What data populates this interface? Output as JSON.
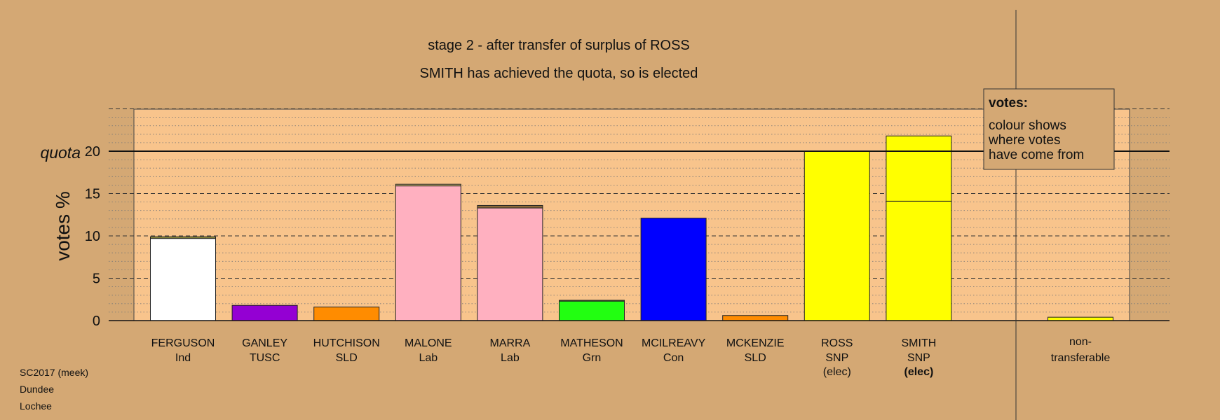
{
  "chart_data": {
    "type": "bar",
    "title": "stage 2 - after transfer of surplus of ROSS",
    "subtitle": "SMITH has achieved the quota, so is elected",
    "ylabel": "votes %",
    "quota_label": "quota",
    "quota": 20,
    "ylim": [
      0,
      25
    ],
    "yticks": [
      0,
      5,
      10,
      15,
      20
    ],
    "grid": "dashed major every 5, dotted minor every 1",
    "candidates": [
      {
        "name": "FERGUSON",
        "party": "Ind",
        "status": "",
        "segments": [
          {
            "value": 9.7,
            "color": "#ffffff"
          },
          {
            "value": 0.2,
            "color": "#8b8b3a"
          }
        ]
      },
      {
        "name": "GANLEY",
        "party": "TUSC",
        "status": "",
        "segments": [
          {
            "value": 1.8,
            "color": "#9400d3"
          }
        ]
      },
      {
        "name": "HUTCHISON",
        "party": "SLD",
        "status": "",
        "segments": [
          {
            "value": 1.6,
            "color": "#ff8c00"
          }
        ]
      },
      {
        "name": "MALONE",
        "party": "Lab",
        "status": "",
        "segments": [
          {
            "value": 15.9,
            "color": "#ffb0c0"
          },
          {
            "value": 0.2,
            "color": "#c8b070"
          }
        ]
      },
      {
        "name": "MARRA",
        "party": "Lab",
        "status": "",
        "segments": [
          {
            "value": 13.3,
            "color": "#ffb0c0"
          },
          {
            "value": 0.3,
            "color": "#8b6a3a"
          }
        ]
      },
      {
        "name": "MATHESON",
        "party": "Grn",
        "status": "",
        "segments": [
          {
            "value": 2.3,
            "color": "#22ff11"
          },
          {
            "value": 0.1,
            "color": "#6b8b3a"
          }
        ]
      },
      {
        "name": "MCILREAVY",
        "party": "Con",
        "status": "",
        "segments": [
          {
            "value": 12.1,
            "color": "#0000ff"
          }
        ]
      },
      {
        "name": "MCKENZIE",
        "party": "SLD",
        "status": "",
        "segments": [
          {
            "value": 0.6,
            "color": "#ff8c00"
          }
        ]
      },
      {
        "name": "ROSS",
        "party": "SNP",
        "status": "(elec)",
        "status_bold": false,
        "segments": [
          {
            "value": 20.0,
            "color": "#ffff00"
          }
        ]
      },
      {
        "name": "SMITH",
        "party": "SNP",
        "status": "(elec)",
        "status_bold": true,
        "segments": [
          {
            "value": 14.1,
            "color": "#ffff00"
          },
          {
            "value": 7.7,
            "color": "#ffff00"
          }
        ]
      }
    ],
    "nontransferable": {
      "label_line1": "non-",
      "label_line2": "transferable",
      "value": 0.4,
      "color": "#ffff00"
    },
    "legend": {
      "title": "votes:",
      "lines": [
        "colour shows",
        "where votes",
        "have come from"
      ],
      "placement": "top-right"
    }
  },
  "footer": {
    "line1": "SC2017 (meek)",
    "line2": "Dundee",
    "line3": "Lochee"
  },
  "colors": {
    "background": "#d4a874",
    "plot_area": "#f8c48c",
    "legend_bg": "#d4a874"
  }
}
